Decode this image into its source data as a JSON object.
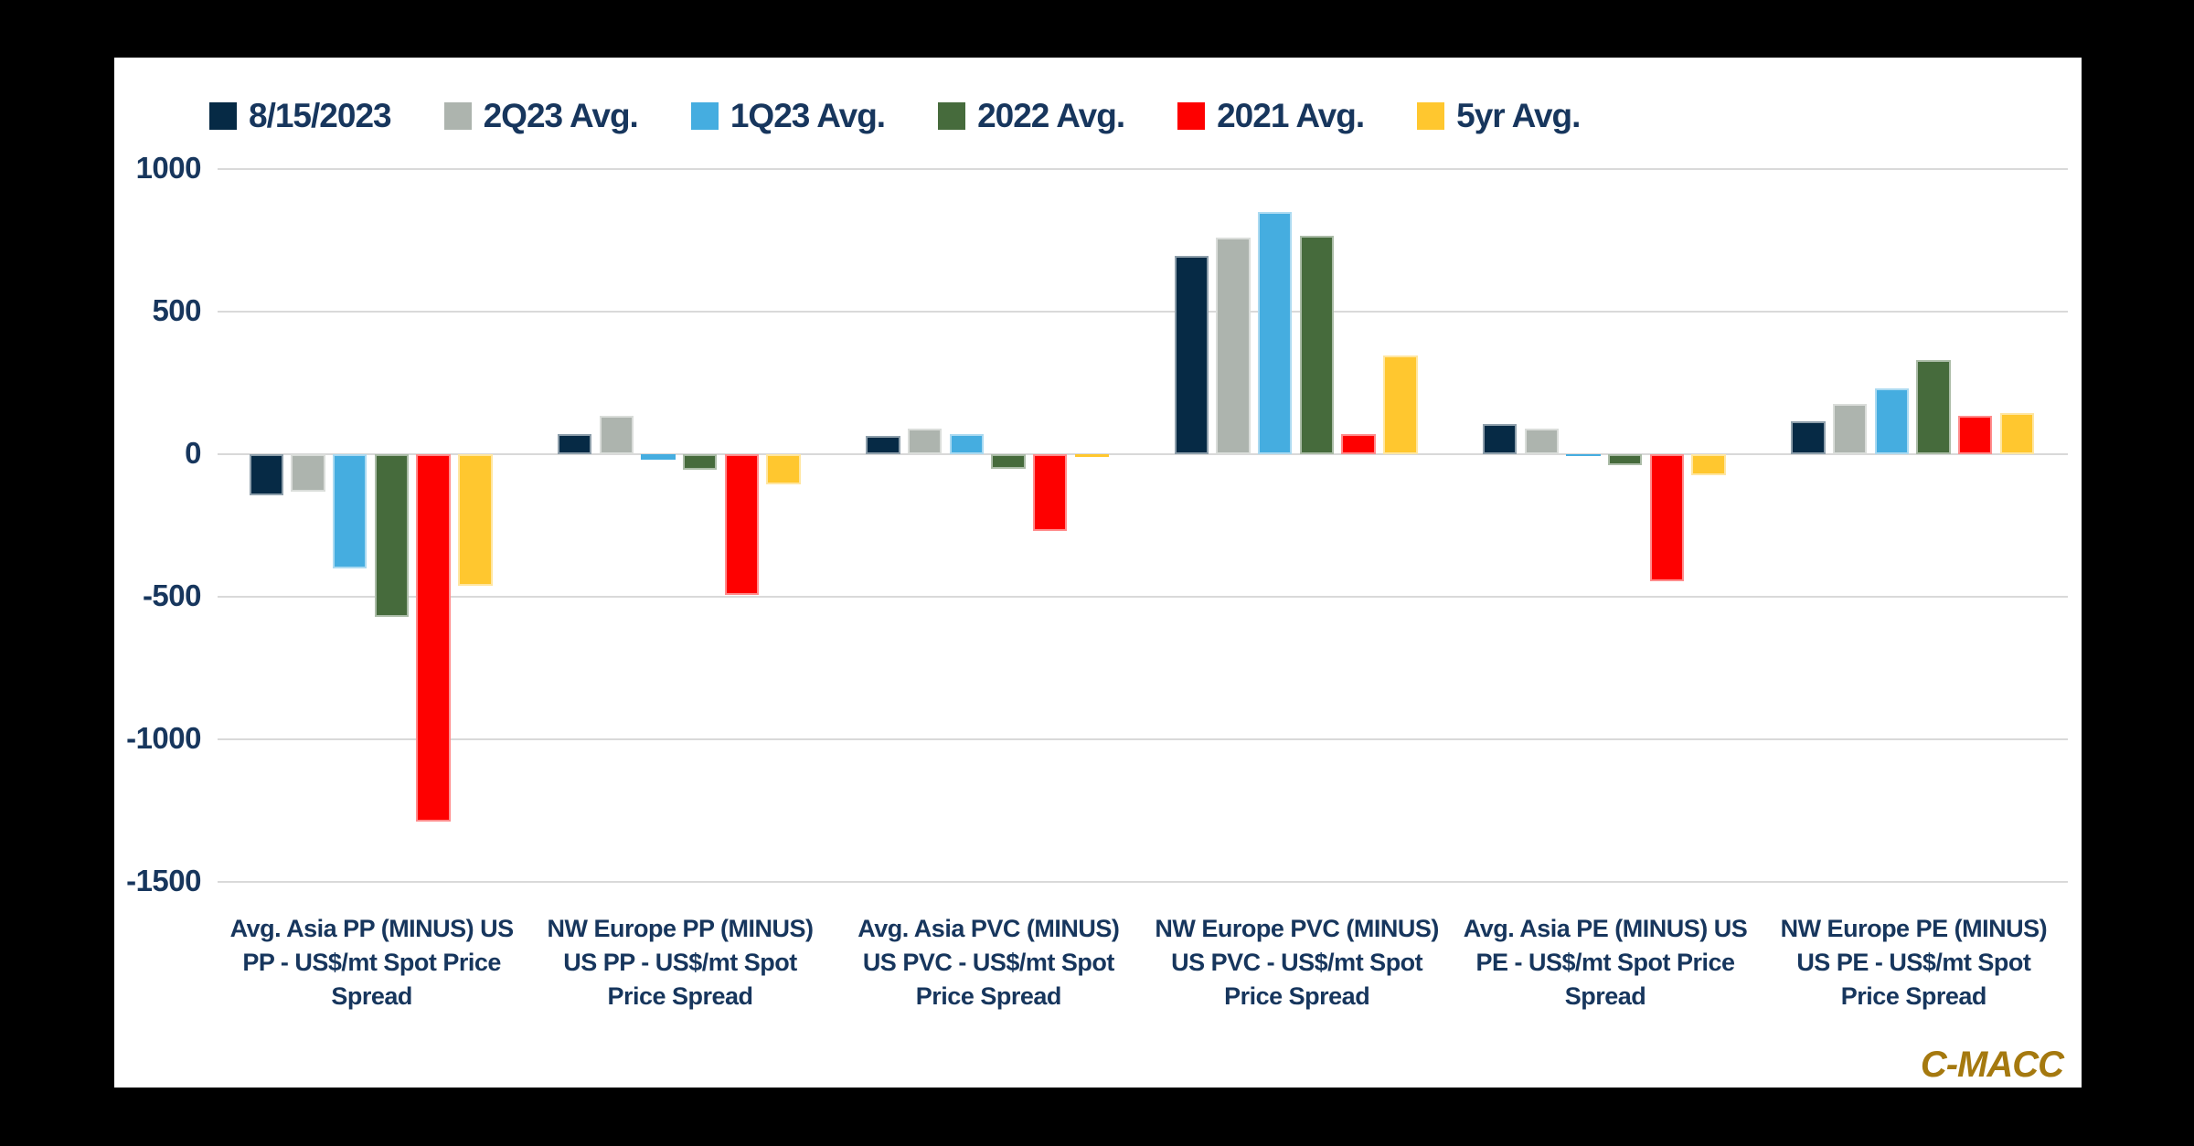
{
  "page": {
    "background_color": "#000000",
    "panel_color": "#ffffff",
    "axis_text_color": "#17365d",
    "gridline_color": "#d9d9d9"
  },
  "brand": {
    "label": "C-MACC",
    "color": "#a5790f"
  },
  "chart_data": {
    "type": "bar",
    "title": "",
    "xlabel": "",
    "ylabel": "",
    "legend_position": "top",
    "grid": true,
    "ylim": [
      -1500,
      1000
    ],
    "y_ticks": [
      1000,
      500,
      0,
      -500,
      -1000,
      -1500
    ],
    "categories": [
      "Avg. Asia PP (MINUS) US PP - US$/mt Spot Price Spread",
      "NW Europe PP (MINUS) US PP - US$/mt Spot Price Spread",
      "Avg. Asia PVC (MINUS) US PVC - US$/mt Spot Price Spread",
      "NW Europe PVC (MINUS) US PVC - US$/mt Spot Price Spread",
      "Avg. Asia PE (MINUS) US PE - US$/mt Spot Price Spread",
      "NW Europe PE (MINUS) US PE - US$/mt Spot Price Spread"
    ],
    "series": [
      {
        "name": "8/15/2023",
        "color": "#062a45",
        "values": [
          -145,
          70,
          65,
          695,
          105,
          115
        ]
      },
      {
        "name": "2Q23 Avg.",
        "color": "#adb4ae",
        "values": [
          -130,
          135,
          90,
          760,
          90,
          175
        ]
      },
      {
        "name": "1Q23 Avg.",
        "color": "#45ade0",
        "values": [
          -400,
          -20,
          70,
          850,
          -5,
          230
        ]
      },
      {
        "name": "2022 Avg.",
        "color": "#466b3c",
        "values": [
          -570,
          -55,
          -50,
          765,
          -40,
          330
        ]
      },
      {
        "name": "2021 Avg.",
        "color": "#fe0000",
        "values": [
          -1290,
          -495,
          -270,
          70,
          -445,
          135
        ]
      },
      {
        "name": "5yr Avg.",
        "color": "#ffc72f",
        "values": [
          -460,
          -105,
          -10,
          345,
          -75,
          145
        ]
      }
    ]
  }
}
